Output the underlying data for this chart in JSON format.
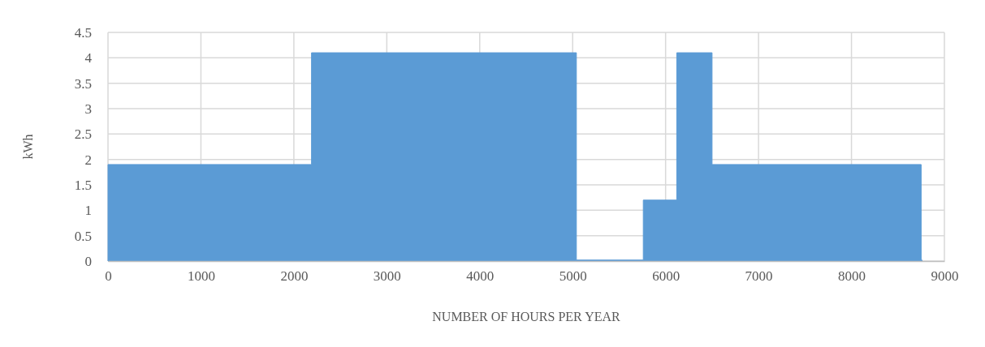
{
  "chart_data": {
    "type": "area",
    "xlabel": "NUMBER OF HOURS PER YEAR",
    "ylabel": "kWh",
    "x": [
      0,
      2190,
      2190,
      5040,
      5040,
      5760,
      5760,
      6120,
      6120,
      6500,
      6500,
      8750,
      8750,
      8760
    ],
    "series": [
      {
        "color": "#5b9bd5",
        "values": [
          1.9,
          1.9,
          4.1,
          4.1,
          0.02,
          0.02,
          1.2,
          1.2,
          4.1,
          4.1,
          1.9,
          1.9,
          0.02,
          0.02
        ]
      }
    ],
    "xlim": [
      0,
      9000
    ],
    "xticks": [
      0,
      1000,
      2000,
      3000,
      4000,
      5000,
      6000,
      7000,
      8000,
      9000
    ],
    "ylim": [
      0,
      4.5
    ],
    "yticks": [
      0,
      0.5,
      1,
      1.5,
      2,
      2.5,
      3,
      3.5,
      4,
      4.5
    ],
    "grid": true
  }
}
